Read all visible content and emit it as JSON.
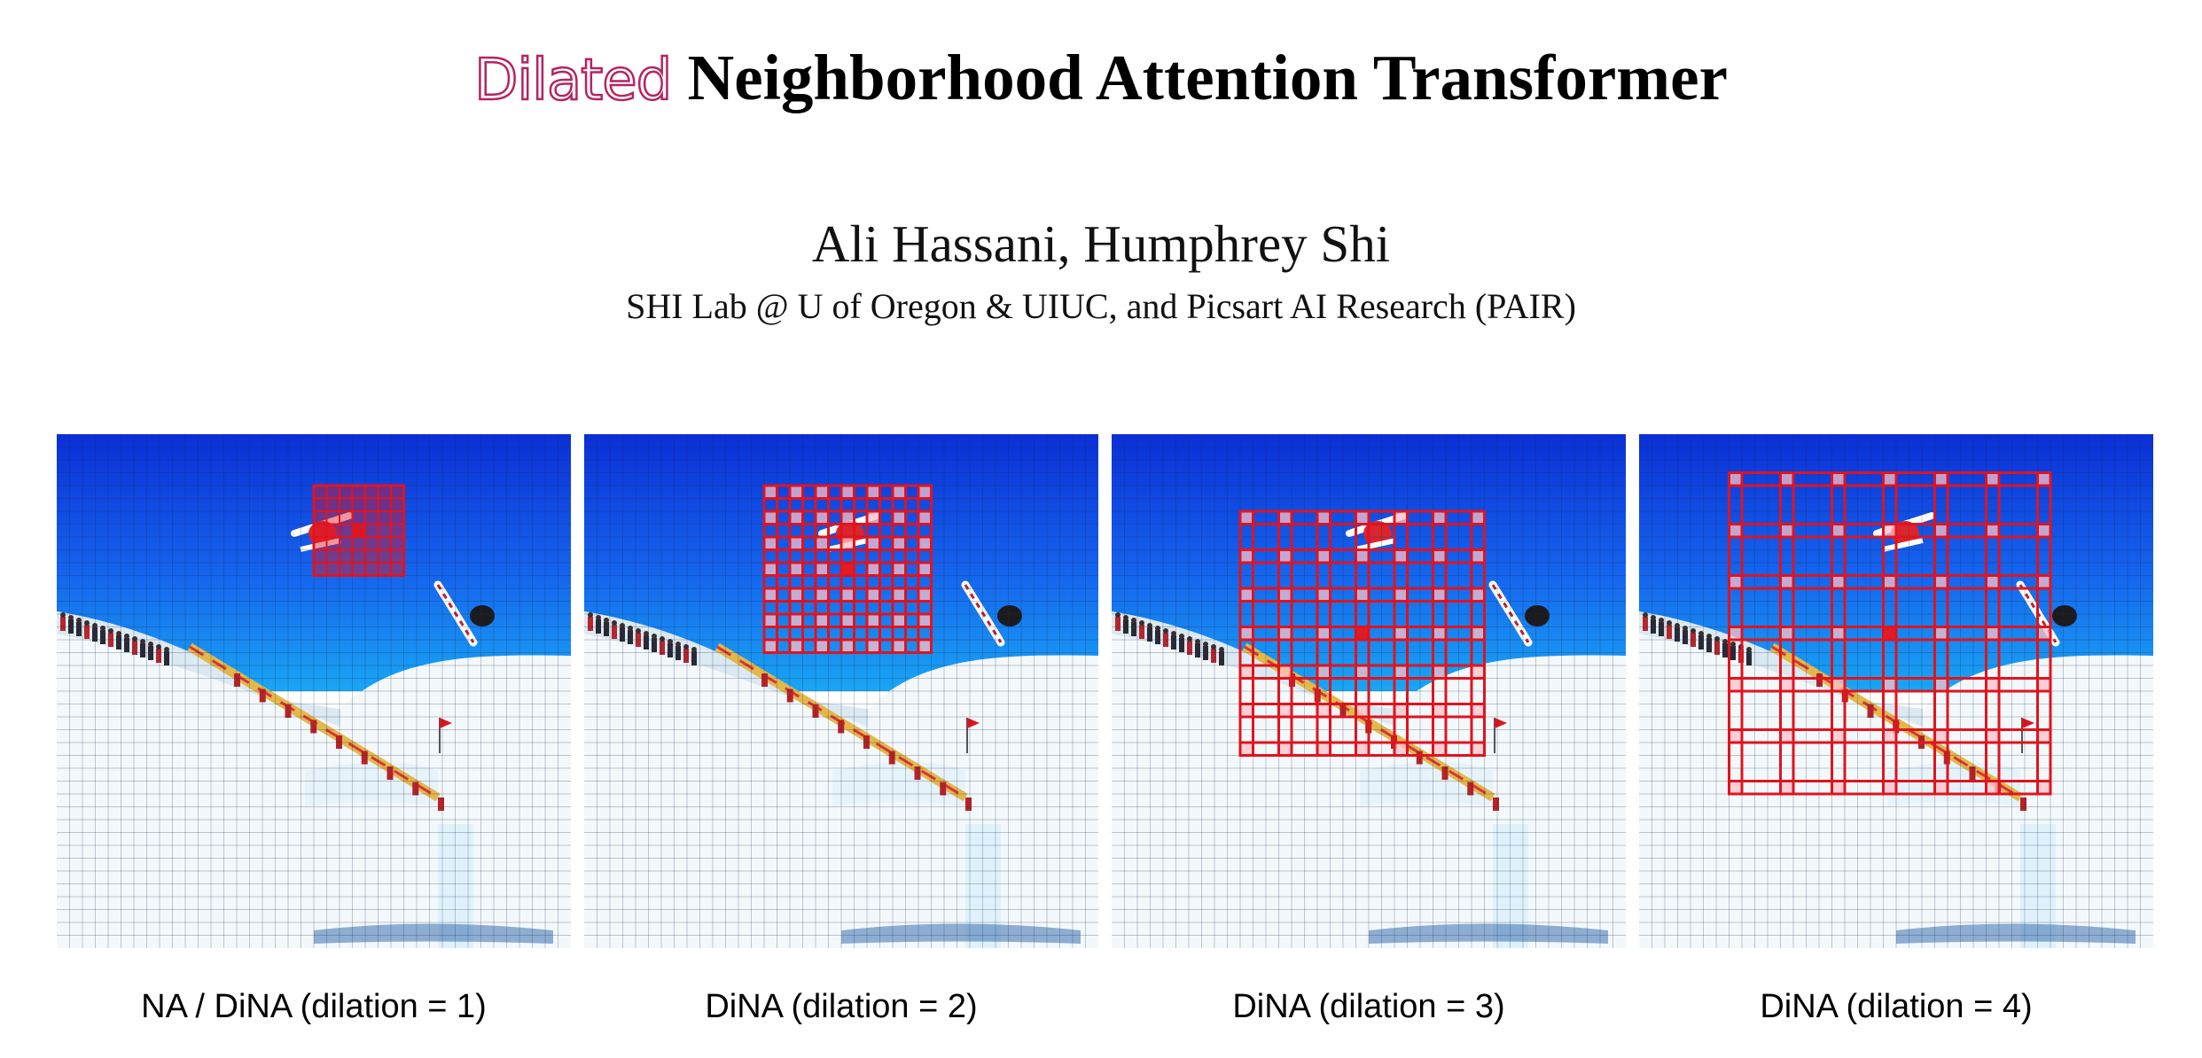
{
  "title": {
    "accent_word": "Dilated",
    "main_text": "Neighborhood Attention Transformer"
  },
  "authors": "Ali Hassani, Humphrey Shi",
  "affiliation": "SHI Lab @ U of Oregon & UIUC, and Picsart AI Research (PAIR)",
  "figure": {
    "accent_color": "#b5245f",
    "window_color": "#e0141e",
    "panels": [
      {
        "caption": "NA / DiNA (dilation = 1)",
        "dilation": 1
      },
      {
        "caption": "DiNA (dilation = 2)",
        "dilation": 2
      },
      {
        "caption": "DiNA (dilation = 3)",
        "dilation": 3
      },
      {
        "caption": "DiNA (dilation = 4)",
        "dilation": 4
      }
    ]
  }
}
